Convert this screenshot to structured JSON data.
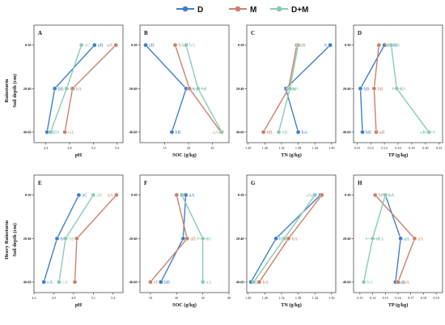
{
  "colors": {
    "D": "#3f7fcc",
    "M": "#c9826a",
    "D+M": "#8ccab5"
  },
  "legend": [
    "D",
    "M",
    "D+M"
  ],
  "row_labels": [
    "Rainstorm",
    "Heavy Rainstorm"
  ],
  "depth_axis_label": "Soil depth (cm)",
  "depths": [
    "0-20",
    "20-40",
    "40-60"
  ],
  "chart_data": [
    {
      "panel": "A",
      "type": "line",
      "row": 0,
      "xlabel": "pH",
      "xlim": [
        4.2,
        5.7
      ],
      "xticks": [
        "4.4",
        "4.8",
        "5.2",
        "5.6"
      ],
      "series": [
        {
          "name": "D",
          "values": [
            5.22,
            4.55,
            4.42
          ],
          "err": [
            0,
            0,
            0
          ],
          "labels": [
            "aB",
            "bB",
            "cC"
          ]
        },
        {
          "name": "M",
          "values": [
            5.58,
            4.85,
            4.72
          ],
          "err": [
            0,
            0,
            0
          ],
          "labels": [
            "aA",
            "bA",
            "cA"
          ]
        },
        {
          "name": "D+M",
          "values": [
            5.0,
            4.75,
            4.48
          ],
          "err": [
            0,
            0,
            0
          ],
          "labels": [
            "aC",
            "bA",
            "cB"
          ]
        }
      ]
    },
    {
      "panel": "B",
      "type": "line",
      "row": 0,
      "xlabel": "SOC (g/kg)",
      "xlim": [
        9.8,
        28.5
      ],
      "xticks": [
        "15",
        "20",
        "25"
      ],
      "series": [
        {
          "name": "D",
          "values": [
            11.0,
            19.5,
            16.5
          ],
          "err": [
            0,
            0,
            0
          ],
          "labels": [
            "cB",
            "aA",
            "bB"
          ]
        },
        {
          "name": "M",
          "values": [
            17.2,
            20.2,
            26.8
          ],
          "err": [
            0,
            0,
            0
          ],
          "labels": [
            "bA",
            "",
            ""
          ]
        },
        {
          "name": "D+M",
          "values": [
            19.5,
            22.0,
            27.0
          ],
          "err": [
            0,
            1.5,
            0
          ],
          "labels": [
            "bA",
            "bA",
            "aA"
          ]
        }
      ]
    },
    {
      "panel": "C",
      "type": "line",
      "row": 0,
      "xlabel": "TN (g/kg)",
      "xlim": [
        1.195,
        1.515
      ],
      "xticks": [
        "1.20",
        "1.26",
        "1.32",
        "1.38",
        "1.44",
        "1.50"
      ],
      "series": [
        {
          "name": "D",
          "values": [
            1.495,
            1.335,
            1.38
          ],
          "err": [
            0,
            0,
            0
          ],
          "labels": [
            "A",
            "bA",
            "bA"
          ]
        },
        {
          "name": "M",
          "values": [
            1.375,
            1.345,
            1.255
          ],
          "err": [
            0,
            0,
            0
          ],
          "labels": [
            "aB",
            "",
            "bB"
          ]
        },
        {
          "name": "D+M",
          "values": [
            1.38,
            1.35,
            1.31
          ],
          "err": [
            0,
            0.02,
            0
          ],
          "labels": [
            "",
            "aA",
            "bB"
          ]
        }
      ]
    },
    {
      "panel": "D",
      "type": "line",
      "row": 0,
      "xlabel": "TP (g/kg)",
      "xlim": [
        0.095,
        0.225
      ],
      "xticks": [
        "0.10",
        "0.12",
        "0.14",
        "0.16",
        "0.18",
        "0.20",
        "0.22"
      ],
      "series": [
        {
          "name": "D",
          "values": [
            0.14,
            0.105,
            0.108
          ],
          "err": [
            0,
            0,
            0
          ],
          "labels": [
            "aAB",
            "bB",
            "bB"
          ]
        },
        {
          "name": "M",
          "values": [
            0.132,
            0.125,
            0.128
          ],
          "err": [
            0,
            0,
            0
          ],
          "labels": [
            "abB",
            "bB",
            "aB"
          ]
        },
        {
          "name": "D+M",
          "values": [
            0.15,
            0.158,
            0.205
          ],
          "err": [
            0.008,
            0.006,
            0.008
          ],
          "labels": [
            "aB",
            "aB",
            "aA"
          ]
        }
      ]
    },
    {
      "panel": "E",
      "type": "line",
      "row": 1,
      "xlabel": "pH",
      "xlim": [
        4.2,
        5.55
      ],
      "xticks": [
        "4.2",
        "4.5",
        "4.8",
        "5.1",
        "5.4"
      ],
      "series": [
        {
          "name": "D",
          "values": [
            4.88,
            4.55,
            4.35
          ],
          "err": [
            0,
            0,
            0
          ],
          "labels": [
            "aC",
            "bC",
            "cA"
          ]
        },
        {
          "name": "M",
          "values": [
            5.45,
            4.85,
            4.82
          ],
          "err": [
            0,
            0,
            0
          ],
          "labels": [
            "aA",
            "",
            ""
          ]
        },
        {
          "name": "D+M",
          "values": [
            5.1,
            4.68,
            4.58
          ],
          "err": [
            0,
            0,
            0
          ],
          "labels": [
            "aB",
            "bB",
            "cA"
          ]
        }
      ]
    },
    {
      "panel": "F",
      "type": "line",
      "row": 1,
      "xlabel": "SOC (g/kg)",
      "xlim": [
        6,
        40
      ],
      "xticks": [
        "10",
        "20",
        "30",
        "40"
      ],
      "series": [
        {
          "name": "D",
          "values": [
            23.5,
            22.5,
            14.0
          ],
          "err": [
            0,
            0,
            0
          ],
          "labels": [
            "aA",
            "",
            "bB"
          ]
        },
        {
          "name": "M",
          "values": [
            20.0,
            24.0,
            10.0
          ],
          "err": [
            0,
            0,
            0
          ],
          "labels": [
            "bA",
            "aB",
            "cC"
          ]
        },
        {
          "name": "D+M",
          "values": [
            22.0,
            30.0,
            30.0
          ],
          "err": [
            0,
            2.0,
            0
          ],
          "labels": [
            "",
            "aA",
            "aA"
          ]
        }
      ]
    },
    {
      "panel": "G",
      "type": "line",
      "row": 1,
      "xlabel": "TN (g/kg)",
      "xlim": [
        1.195,
        1.515
      ],
      "xticks": [
        "1.20",
        "1.26",
        "1.32",
        "1.38",
        "1.44",
        "1.50"
      ],
      "series": [
        {
          "name": "D",
          "values": [
            1.46,
            1.3,
            1.21
          ],
          "err": [
            0,
            0,
            0
          ],
          "labels": [
            "aA",
            "bB",
            "cB"
          ]
        },
        {
          "name": "M",
          "values": [
            1.465,
            1.345,
            1.24
          ],
          "err": [
            0,
            0,
            0
          ],
          "labels": [
            "",
            "bA",
            "bA"
          ]
        },
        {
          "name": "D+M",
          "values": [
            1.44,
            1.33,
            1.22
          ],
          "err": [
            0,
            0,
            0
          ],
          "labels": [
            "aA",
            "",
            ""
          ]
        }
      ]
    },
    {
      "panel": "H",
      "type": "line",
      "row": 1,
      "xlabel": "TP (g/kg)",
      "xlim": [
        0.125,
        0.195
      ],
      "xticks": [
        "0.13",
        "0.14",
        "0.15",
        "0.16",
        "0.17",
        "0.18",
        "0.19"
      ],
      "series": [
        {
          "name": "D",
          "values": [
            0.15,
            0.162,
            0.158
          ],
          "err": [
            0,
            0,
            0
          ],
          "labels": [
            "aA",
            "aA",
            "aA"
          ]
        },
        {
          "name": "M",
          "values": [
            0.142,
            0.173,
            0.16
          ],
          "err": [
            0,
            0,
            0
          ],
          "labels": [
            "bA",
            "aA",
            "abA"
          ]
        },
        {
          "name": "D+M",
          "values": [
            0.15,
            0.14,
            0.133
          ],
          "err": [
            0.003,
            0.005,
            0
          ],
          "labels": [
            "aA",
            "abA",
            "bA"
          ]
        }
      ]
    }
  ]
}
